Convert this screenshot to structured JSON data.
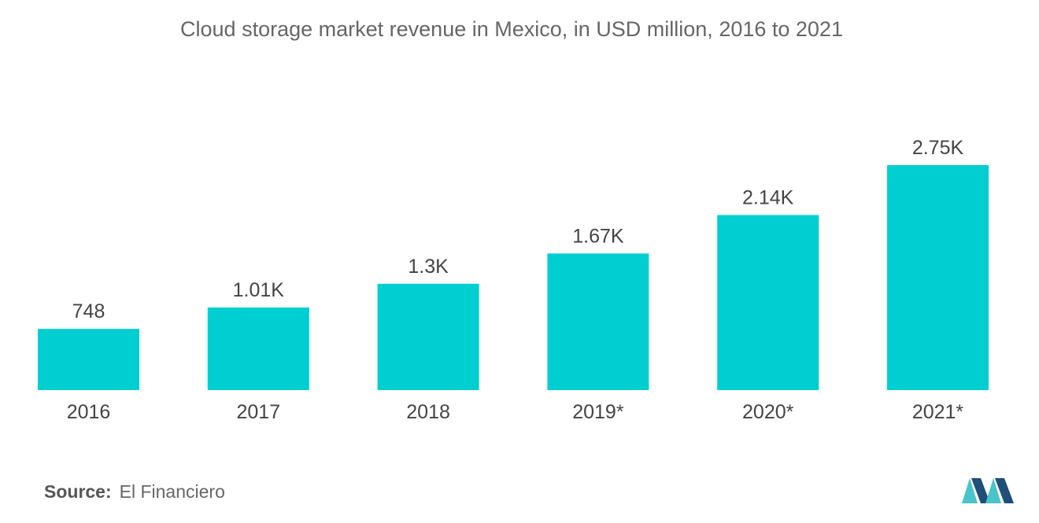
{
  "chart_data": {
    "type": "bar",
    "title": "Cloud storage market revenue in Mexico, in USD million,  2016 to 2021",
    "categories": [
      "2016",
      "2017",
      "2018",
      "2019*",
      "2020*",
      "2021*"
    ],
    "values": [
      748,
      1010,
      1300,
      1670,
      2140,
      2750
    ],
    "data_labels": [
      "748",
      "1.01K",
      "1.3K",
      "1.67K",
      "2.14K",
      "2.75K"
    ],
    "xlabel": "",
    "ylabel": "",
    "ylim": [
      0,
      2750
    ],
    "grid": false,
    "legend": "none",
    "bar_color": "#00CED1"
  },
  "source": {
    "label": "Source:",
    "text": "El Financiero"
  },
  "logo": {
    "icon": "mordor-intelligence-logo-icon",
    "color_dark": "#1f4e79",
    "color_light": "#4ac4c8"
  }
}
